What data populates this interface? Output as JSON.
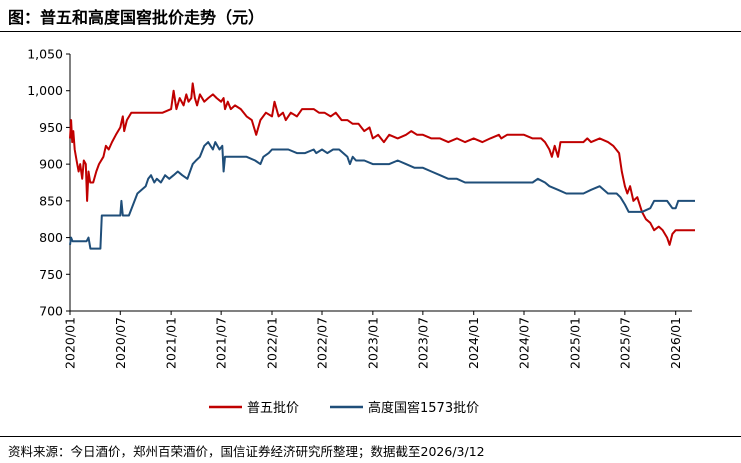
{
  "title": "图：普五和高度国窖批价走势（元）",
  "source": "资料来源：今日酒价，郑州百荣酒价，国信证券经济研究所整理；数据截至2026/3/12",
  "colors": {
    "wuliangye": "#c00000",
    "guojiao": "#1f4e79"
  },
  "chart_data": {
    "type": "line",
    "title": "图：普五和高度国窖批价走势（元）",
    "xlabel": "",
    "ylabel": "",
    "ylim": [
      700,
      1050
    ],
    "yticks": [
      700,
      750,
      800,
      850,
      900,
      950,
      1000,
      1050
    ],
    "ytick_labels": [
      "700",
      "750",
      "800",
      "850",
      "900",
      "950",
      "1,000",
      "1,050"
    ],
    "xlim": [
      "2020-01",
      "2026-03"
    ],
    "xtick_labels": [
      "2020/01",
      "2020/07",
      "2021/01",
      "2021/07",
      "2022/01",
      "2022/07",
      "2023/01",
      "2023/07",
      "2024/01",
      "2024/07",
      "2025/01",
      "2025/07",
      "2026/01"
    ],
    "grid": false,
    "legend_position": "bottom",
    "series": [
      {
        "name": "普五批价",
        "color": "#c00000",
        "points": [
          [
            "2020-01-01",
            935
          ],
          [
            "2020-01-05",
            960
          ],
          [
            "2020-01-09",
            930
          ],
          [
            "2020-01-13",
            945
          ],
          [
            "2020-01-18",
            920
          ],
          [
            "2020-01-25",
            905
          ],
          [
            "2020-02-01",
            890
          ],
          [
            "2020-02-07",
            900
          ],
          [
            "2020-02-14",
            880
          ],
          [
            "2020-02-20",
            905
          ],
          [
            "2020-02-27",
            900
          ],
          [
            "2020-03-03",
            850
          ],
          [
            "2020-03-08",
            890
          ],
          [
            "2020-03-14",
            875
          ],
          [
            "2020-03-25",
            875
          ],
          [
            "2020-04-05",
            890
          ],
          [
            "2020-04-15",
            900
          ],
          [
            "2020-05-01",
            910
          ],
          [
            "2020-05-10",
            925
          ],
          [
            "2020-05-20",
            920
          ],
          [
            "2020-06-01",
            930
          ],
          [
            "2020-06-15",
            940
          ],
          [
            "2020-07-01",
            950
          ],
          [
            "2020-07-10",
            965
          ],
          [
            "2020-07-15",
            945
          ],
          [
            "2020-07-25",
            960
          ],
          [
            "2020-08-10",
            970
          ],
          [
            "2020-10-01",
            970
          ],
          [
            "2020-12-01",
            970
          ],
          [
            "2021-01-01",
            975
          ],
          [
            "2021-01-10",
            1000
          ],
          [
            "2021-01-20",
            975
          ],
          [
            "2021-02-01",
            990
          ],
          [
            "2021-02-15",
            980
          ],
          [
            "2021-02-25",
            995
          ],
          [
            "2021-03-05",
            985
          ],
          [
            "2021-03-15",
            990
          ],
          [
            "2021-03-20",
            1010
          ],
          [
            "2021-03-28",
            990
          ],
          [
            "2021-04-05",
            980
          ],
          [
            "2021-04-15",
            995
          ],
          [
            "2021-05-01",
            985
          ],
          [
            "2021-05-15",
            990
          ],
          [
            "2021-06-01",
            995
          ],
          [
            "2021-06-15",
            990
          ],
          [
            "2021-07-01",
            985
          ],
          [
            "2021-07-10",
            990
          ],
          [
            "2021-07-15",
            975
          ],
          [
            "2021-07-25",
            985
          ],
          [
            "2021-08-05",
            975
          ],
          [
            "2021-08-20",
            980
          ],
          [
            "2021-09-10",
            975
          ],
          [
            "2021-10-01",
            965
          ],
          [
            "2021-10-20",
            960
          ],
          [
            "2021-11-05",
            940
          ],
          [
            "2021-11-20",
            960
          ],
          [
            "2021-12-10",
            970
          ],
          [
            "2022-01-01",
            965
          ],
          [
            "2022-01-10",
            985
          ],
          [
            "2022-01-25",
            965
          ],
          [
            "2022-02-10",
            970
          ],
          [
            "2022-02-20",
            960
          ],
          [
            "2022-03-10",
            970
          ],
          [
            "2022-04-01",
            965
          ],
          [
            "2022-04-20",
            975
          ],
          [
            "2022-05-10",
            975
          ],
          [
            "2022-06-01",
            975
          ],
          [
            "2022-06-20",
            970
          ],
          [
            "2022-07-10",
            970
          ],
          [
            "2022-08-01",
            965
          ],
          [
            "2022-08-20",
            970
          ],
          [
            "2022-09-10",
            960
          ],
          [
            "2022-10-01",
            960
          ],
          [
            "2022-10-20",
            955
          ],
          [
            "2022-11-10",
            955
          ],
          [
            "2022-12-01",
            945
          ],
          [
            "2022-12-20",
            950
          ],
          [
            "2023-01-01",
            935
          ],
          [
            "2023-01-20",
            940
          ],
          [
            "2023-02-10",
            930
          ],
          [
            "2023-03-01",
            940
          ],
          [
            "2023-04-01",
            935
          ],
          [
            "2023-05-01",
            940
          ],
          [
            "2023-05-20",
            945
          ],
          [
            "2023-06-10",
            940
          ],
          [
            "2023-07-01",
            940
          ],
          [
            "2023-08-01",
            935
          ],
          [
            "2023-09-01",
            935
          ],
          [
            "2023-10-01",
            930
          ],
          [
            "2023-11-01",
            935
          ],
          [
            "2023-12-01",
            930
          ],
          [
            "2024-01-01",
            935
          ],
          [
            "2024-02-01",
            930
          ],
          [
            "2024-03-01",
            935
          ],
          [
            "2024-04-01",
            940
          ],
          [
            "2024-04-10",
            935
          ],
          [
            "2024-05-01",
            940
          ],
          [
            "2024-06-01",
            940
          ],
          [
            "2024-07-01",
            940
          ],
          [
            "2024-08-01",
            935
          ],
          [
            "2024-09-01",
            935
          ],
          [
            "2024-09-15",
            930
          ],
          [
            "2024-10-01",
            920
          ],
          [
            "2024-10-10",
            910
          ],
          [
            "2024-10-20",
            925
          ],
          [
            "2024-11-01",
            910
          ],
          [
            "2024-11-10",
            930
          ],
          [
            "2024-12-01",
            930
          ],
          [
            "2025-01-01",
            930
          ],
          [
            "2025-02-01",
            930
          ],
          [
            "2025-02-15",
            935
          ],
          [
            "2025-03-01",
            930
          ],
          [
            "2025-04-01",
            935
          ],
          [
            "2025-05-01",
            930
          ],
          [
            "2025-05-20",
            925
          ],
          [
            "2025-06-10",
            915
          ],
          [
            "2025-06-20",
            890
          ],
          [
            "2025-07-01",
            870
          ],
          [
            "2025-07-10",
            860
          ],
          [
            "2025-07-20",
            870
          ],
          [
            "2025-08-01",
            850
          ],
          [
            "2025-08-15",
            855
          ],
          [
            "2025-09-01",
            835
          ],
          [
            "2025-09-15",
            825
          ],
          [
            "2025-10-01",
            820
          ],
          [
            "2025-10-15",
            810
          ],
          [
            "2025-11-01",
            815
          ],
          [
            "2025-11-15",
            810
          ],
          [
            "2025-12-01",
            800
          ],
          [
            "2025-12-10",
            790
          ],
          [
            "2025-12-20",
            805
          ],
          [
            "2026-01-01",
            810
          ],
          [
            "2026-02-01",
            810
          ],
          [
            "2026-03-12",
            810
          ]
        ]
      },
      {
        "name": "高度国窖1573批价",
        "color": "#1f4e79",
        "points": [
          [
            "2020-01-01",
            790
          ],
          [
            "2020-01-05",
            800
          ],
          [
            "2020-01-10",
            795
          ],
          [
            "2020-03-01",
            795
          ],
          [
            "2020-03-08",
            800
          ],
          [
            "2020-03-15",
            785
          ],
          [
            "2020-04-20",
            785
          ],
          [
            "2020-04-25",
            830
          ],
          [
            "2020-07-01",
            830
          ],
          [
            "2020-07-05",
            850
          ],
          [
            "2020-07-10",
            830
          ],
          [
            "2020-08-01",
            830
          ],
          [
            "2020-09-01",
            860
          ],
          [
            "2020-10-01",
            870
          ],
          [
            "2020-10-10",
            880
          ],
          [
            "2020-10-20",
            885
          ],
          [
            "2020-11-01",
            875
          ],
          [
            "2020-11-10",
            880
          ],
          [
            "2020-11-25",
            875
          ],
          [
            "2020-12-10",
            885
          ],
          [
            "2020-12-25",
            880
          ],
          [
            "2021-01-10",
            885
          ],
          [
            "2021-01-25",
            890
          ],
          [
            "2021-02-10",
            885
          ],
          [
            "2021-03-01",
            880
          ],
          [
            "2021-03-20",
            900
          ],
          [
            "2021-04-01",
            905
          ],
          [
            "2021-04-15",
            910
          ],
          [
            "2021-05-01",
            925
          ],
          [
            "2021-05-15",
            930
          ],
          [
            "2021-06-01",
            920
          ],
          [
            "2021-06-10",
            930
          ],
          [
            "2021-06-25",
            920
          ],
          [
            "2021-07-05",
            925
          ],
          [
            "2021-07-10",
            890
          ],
          [
            "2021-07-15",
            910
          ],
          [
            "2021-08-01",
            910
          ],
          [
            "2021-09-01",
            910
          ],
          [
            "2021-10-01",
            910
          ],
          [
            "2021-11-01",
            905
          ],
          [
            "2021-11-20",
            900
          ],
          [
            "2021-12-01",
            910
          ],
          [
            "2021-12-20",
            915
          ],
          [
            "2022-01-01",
            920
          ],
          [
            "2022-02-01",
            920
          ],
          [
            "2022-03-01",
            920
          ],
          [
            "2022-04-01",
            915
          ],
          [
            "2022-05-01",
            915
          ],
          [
            "2022-06-01",
            920
          ],
          [
            "2022-06-10",
            915
          ],
          [
            "2022-07-01",
            920
          ],
          [
            "2022-07-20",
            915
          ],
          [
            "2022-08-10",
            920
          ],
          [
            "2022-09-01",
            920
          ],
          [
            "2022-10-01",
            910
          ],
          [
            "2022-10-10",
            900
          ],
          [
            "2022-10-20",
            910
          ],
          [
            "2022-11-01",
            905
          ],
          [
            "2022-12-01",
            905
          ],
          [
            "2023-01-01",
            900
          ],
          [
            "2023-02-01",
            900
          ],
          [
            "2023-03-01",
            900
          ],
          [
            "2023-04-01",
            905
          ],
          [
            "2023-05-01",
            900
          ],
          [
            "2023-06-01",
            895
          ],
          [
            "2023-07-01",
            895
          ],
          [
            "2023-08-01",
            890
          ],
          [
            "2023-09-01",
            885
          ],
          [
            "2023-10-01",
            880
          ],
          [
            "2023-11-01",
            880
          ],
          [
            "2023-12-01",
            875
          ],
          [
            "2024-01-01",
            875
          ],
          [
            "2024-03-01",
            875
          ],
          [
            "2024-05-01",
            875
          ],
          [
            "2024-07-01",
            875
          ],
          [
            "2024-08-01",
            875
          ],
          [
            "2024-08-20",
            880
          ],
          [
            "2024-09-15",
            875
          ],
          [
            "2024-10-01",
            870
          ],
          [
            "2024-11-01",
            865
          ],
          [
            "2024-12-01",
            860
          ],
          [
            "2025-01-01",
            860
          ],
          [
            "2025-02-01",
            860
          ],
          [
            "2025-03-01",
            865
          ],
          [
            "2025-04-01",
            870
          ],
          [
            "2025-05-01",
            860
          ],
          [
            "2025-06-01",
            860
          ],
          [
            "2025-06-15",
            855
          ],
          [
            "2025-07-01",
            845
          ],
          [
            "2025-07-15",
            835
          ],
          [
            "2025-08-01",
            835
          ],
          [
            "2025-09-01",
            835
          ],
          [
            "2025-10-01",
            840
          ],
          [
            "2025-10-15",
            850
          ],
          [
            "2025-11-01",
            850
          ],
          [
            "2025-12-01",
            850
          ],
          [
            "2025-12-20",
            840
          ],
          [
            "2026-01-01",
            840
          ],
          [
            "2026-01-10",
            850
          ],
          [
            "2026-02-01",
            850
          ],
          [
            "2026-03-12",
            850
          ]
        ]
      }
    ]
  }
}
